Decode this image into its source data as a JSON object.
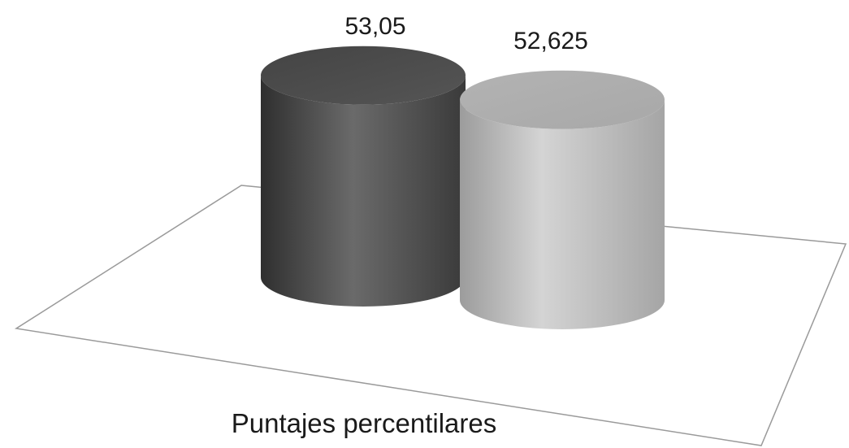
{
  "chart_data": {
    "type": "bar",
    "style": "3d-cylinder",
    "categories": [
      "Puntajes percentilares"
    ],
    "series": [
      {
        "values": [
          53.05
        ],
        "color": "#5a5a5a"
      },
      {
        "values": [
          52.625
        ],
        "color": "#bdbdbd"
      }
    ],
    "data_labels": [
      "53,05",
      "52,625"
    ],
    "grid": false,
    "legend": "none"
  }
}
